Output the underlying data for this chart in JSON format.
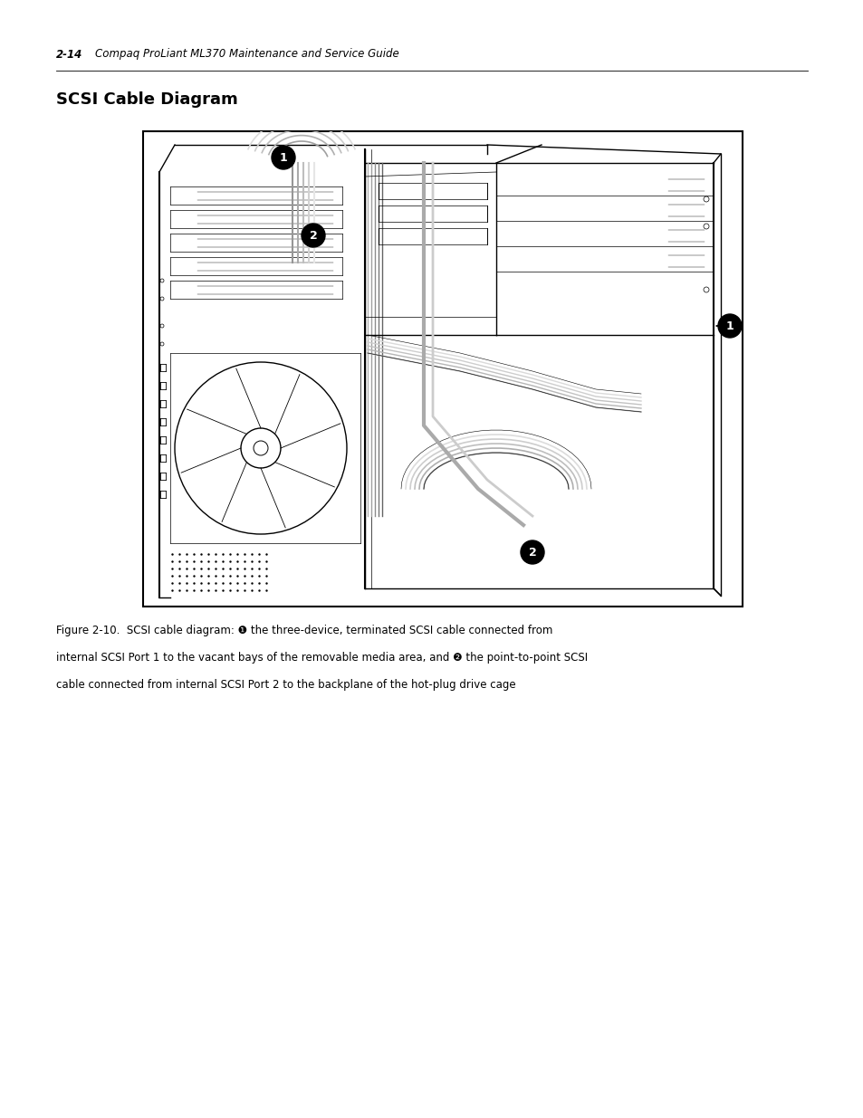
{
  "page_header_number": "2-14",
  "page_header_title": "Compaq ProLiant ML370 Maintenance and Service Guide",
  "section_title": "SCSI Cable Diagram",
  "figure_caption_line1": "Figure 2-10.  SCSI cable diagram: ❶ the three-device, terminated SCSI cable connected from",
  "figure_caption_line2": "internal SCSI Port 1 to the vacant bays of the removable media area, and ❷ the point-to-point SCSI",
  "figure_caption_line3": "cable connected from internal SCSI Port 2 to the backplane of the hot-plug drive cage",
  "background_color": "#ffffff",
  "header_fontsize": 8.5,
  "section_title_fontsize": 13,
  "caption_fontsize": 8.5
}
